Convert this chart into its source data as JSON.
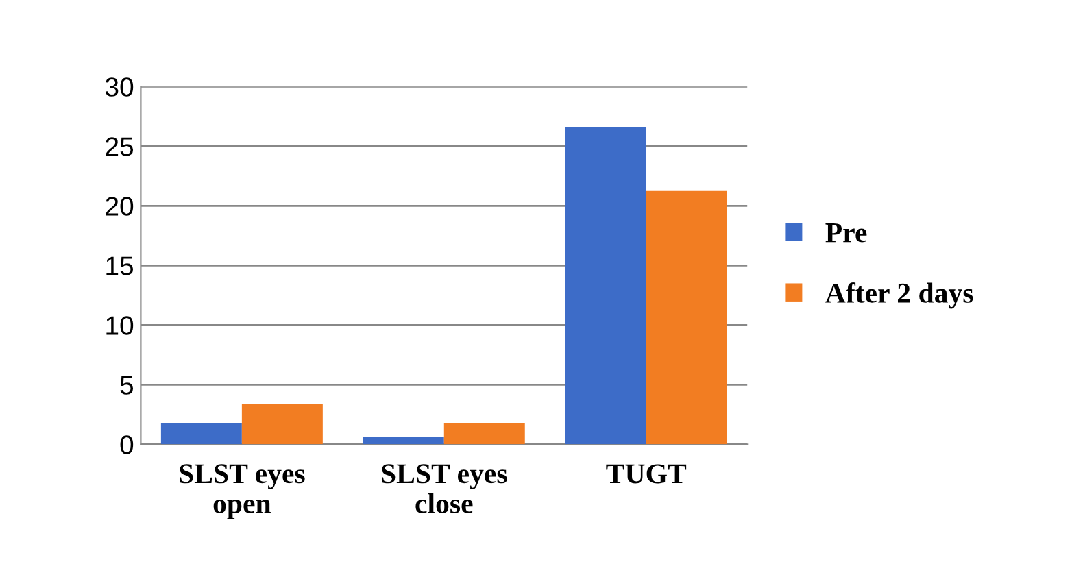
{
  "chart_data": {
    "type": "bar",
    "categories": [
      "SLST eyes open",
      "SLST eyes close",
      "TUGT"
    ],
    "series": [
      {
        "name": "Pre",
        "color": "#3d6cc8",
        "values": [
          1.8,
          0.6,
          26.6
        ]
      },
      {
        "name": "After 2 days",
        "color": "#f27d22",
        "values": [
          3.4,
          1.8,
          21.3
        ]
      }
    ],
    "ylim": [
      0,
      30
    ],
    "yticks": [
      0,
      5,
      10,
      15,
      20,
      25,
      30
    ],
    "grid": "y",
    "legend": "right"
  }
}
